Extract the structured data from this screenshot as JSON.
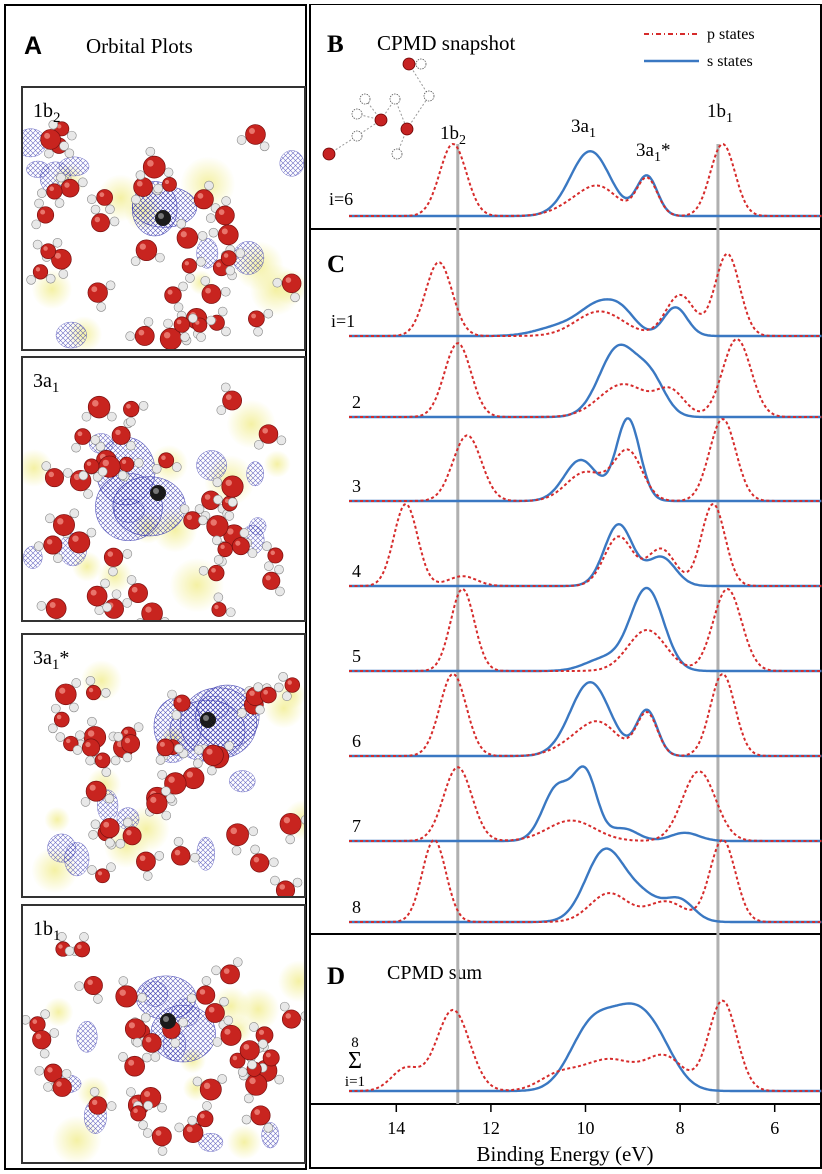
{
  "panel_a": {
    "letter": "A",
    "title": "Orbital Plots",
    "orbitals": [
      {
        "label": "1b",
        "sub": "2"
      },
      {
        "label": "3a",
        "sub": "1"
      },
      {
        "label": "3a",
        "sub": "1",
        "suffix": "*"
      },
      {
        "label": "1b",
        "sub": "1"
      }
    ]
  },
  "panel_b": {
    "letter": "B",
    "title": "CPMD snapshot",
    "row_label": "i=6"
  },
  "panel_c": {
    "letter": "C",
    "row_labels": [
      "i=1",
      "2",
      "3",
      "4",
      "5",
      "6",
      "7",
      "8"
    ]
  },
  "panel_d": {
    "letter": "D",
    "title": "CPMD sum",
    "sum_top": "8",
    "sum_symbol": "Σ",
    "sum_bottom": "i=1"
  },
  "legend": {
    "p_states": "p states",
    "s_states": "s states"
  },
  "peak_labels": [
    {
      "text": "1b",
      "sub": "2",
      "suffix": ""
    },
    {
      "text": "3a",
      "sub": "1",
      "suffix": ""
    },
    {
      "text": "3a",
      "sub": "1",
      "suffix": "*"
    },
    {
      "text": "1b",
      "sub": "1",
      "suffix": ""
    }
  ],
  "colors": {
    "p_states": "#d62b2b",
    "s_states": "#3a78c2",
    "reference_line": "#b0b0b0"
  },
  "chart_data": {
    "type": "line",
    "xlabel": "Binding Energy (eV)",
    "x_ticks": [
      14,
      12,
      10,
      8,
      6
    ],
    "xlim": [
      15,
      5
    ],
    "x_reversed": true,
    "reference_lines_ev": [
      12.7,
      7.2
    ],
    "series_names": [
      "p states",
      "s states"
    ],
    "spectra": [
      {
        "row": "i=6",
        "panel": "B",
        "p": [
          [
            12.8,
            1.0,
            0.28
          ],
          [
            10.3,
            0.12,
            0.4
          ],
          [
            9.7,
            0.38,
            0.4
          ],
          [
            8.7,
            0.52,
            0.22
          ],
          [
            7.1,
            1.0,
            0.26
          ]
        ],
        "s": [
          [
            9.9,
            0.9,
            0.42
          ],
          [
            8.7,
            0.55,
            0.22
          ]
        ]
      },
      {
        "row": "i=1",
        "panel": "C",
        "p": [
          [
            13.1,
            0.9,
            0.28
          ],
          [
            9.7,
            0.3,
            0.5
          ],
          [
            8.0,
            0.5,
            0.3
          ],
          [
            7.0,
            1.0,
            0.26
          ]
        ],
        "s": [
          [
            10.5,
            0.12,
            0.5
          ],
          [
            9.7,
            0.35,
            0.4
          ],
          [
            9.2,
            0.2,
            0.3
          ],
          [
            8.1,
            0.35,
            0.25
          ]
        ]
      },
      {
        "row": "2",
        "panel": "C",
        "p": [
          [
            12.7,
            0.9,
            0.28
          ],
          [
            9.2,
            0.4,
            0.5
          ],
          [
            8.2,
            0.3,
            0.3
          ],
          [
            6.8,
            0.95,
            0.3
          ]
        ],
        "s": [
          [
            9.3,
            0.85,
            0.4
          ],
          [
            8.6,
            0.4,
            0.3
          ]
        ]
      },
      {
        "row": "3",
        "panel": "C",
        "p": [
          [
            12.5,
            0.8,
            0.3
          ],
          [
            10.0,
            0.35,
            0.4
          ],
          [
            9.1,
            0.6,
            0.3
          ],
          [
            7.1,
            1.0,
            0.28
          ]
        ],
        "s": [
          [
            10.1,
            0.5,
            0.35
          ],
          [
            9.1,
            1.0,
            0.25
          ]
        ]
      },
      {
        "row": "4",
        "panel": "C",
        "p": [
          [
            13.8,
            1.0,
            0.25
          ],
          [
            12.6,
            0.12,
            0.3
          ],
          [
            9.3,
            0.6,
            0.3
          ],
          [
            8.4,
            0.45,
            0.3
          ],
          [
            7.3,
            1.0,
            0.25
          ]
        ],
        "s": [
          [
            9.3,
            0.75,
            0.3
          ],
          [
            8.4,
            0.35,
            0.3
          ]
        ]
      },
      {
        "row": "5",
        "panel": "C",
        "p": [
          [
            12.6,
            1.0,
            0.25
          ],
          [
            8.7,
            0.5,
            0.4
          ],
          [
            7.0,
            1.0,
            0.3
          ]
        ],
        "s": [
          [
            9.6,
            0.15,
            0.4
          ],
          [
            8.7,
            1.0,
            0.35
          ]
        ]
      },
      {
        "row": "6",
        "panel": "C",
        "p": [
          [
            12.8,
            1.0,
            0.28
          ],
          [
            10.3,
            0.12,
            0.4
          ],
          [
            9.7,
            0.38,
            0.4
          ],
          [
            8.7,
            0.52,
            0.22
          ],
          [
            7.1,
            1.0,
            0.26
          ]
        ],
        "s": [
          [
            9.9,
            0.9,
            0.42
          ],
          [
            8.7,
            0.55,
            0.22
          ]
        ]
      },
      {
        "row": "7",
        "panel": "C",
        "p": [
          [
            12.7,
            0.9,
            0.3
          ],
          [
            10.3,
            0.25,
            0.5
          ],
          [
            7.6,
            0.85,
            0.35
          ]
        ],
        "s": [
          [
            10.6,
            0.65,
            0.3
          ],
          [
            10.0,
            0.8,
            0.25
          ],
          [
            9.2,
            0.15,
            0.3
          ],
          [
            7.9,
            0.1,
            0.3
          ]
        ]
      },
      {
        "row": "8",
        "panel": "C",
        "p": [
          [
            13.2,
            1.0,
            0.25
          ],
          [
            9.5,
            0.35,
            0.4
          ],
          [
            8.3,
            0.25,
            0.4
          ],
          [
            7.1,
            1.0,
            0.27
          ]
        ],
        "s": [
          [
            9.6,
            0.85,
            0.4
          ],
          [
            8.8,
            0.3,
            0.4
          ],
          [
            8.0,
            0.25,
            0.3
          ]
        ]
      },
      {
        "row": "sum",
        "panel": "D",
        "p": [
          [
            13.8,
            0.25,
            0.3
          ],
          [
            12.8,
            0.9,
            0.35
          ],
          [
            10.6,
            0.15,
            0.4
          ],
          [
            9.5,
            0.35,
            0.6
          ],
          [
            8.3,
            0.35,
            0.4
          ],
          [
            7.1,
            1.0,
            0.3
          ]
        ],
        "s": [
          [
            9.9,
            0.65,
            0.45
          ],
          [
            9.0,
            0.8,
            0.5
          ],
          [
            8.4,
            0.25,
            0.4
          ]
        ]
      }
    ]
  }
}
